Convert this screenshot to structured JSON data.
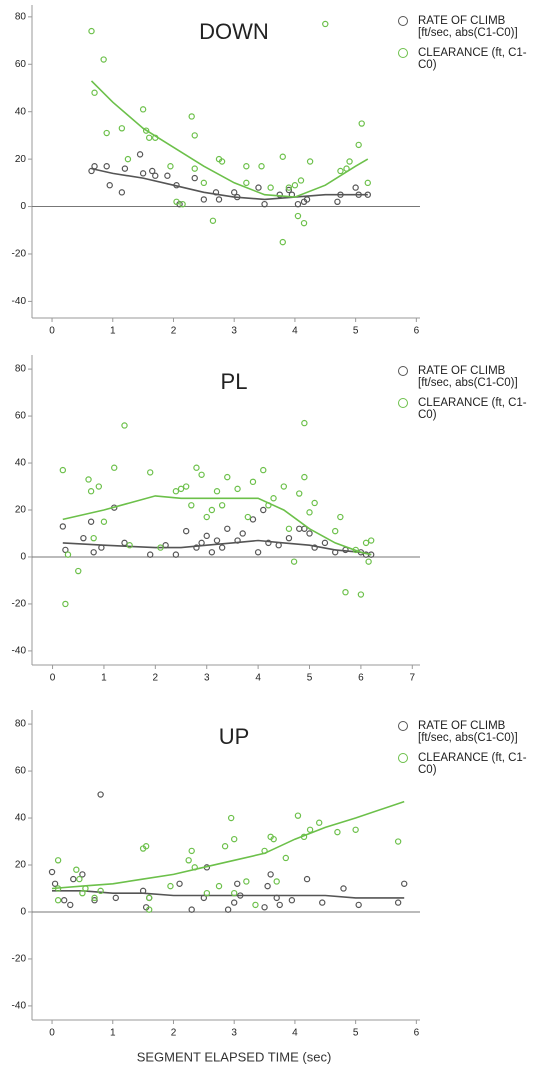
{
  "chart_data": [
    {
      "type": "scatter",
      "title": "DOWN",
      "xlim": [
        -0.33,
        6.06
      ],
      "ylim": [
        -47,
        85
      ],
      "xticks": [
        0,
        1,
        2,
        3,
        4,
        5,
        6
      ],
      "yticks": [
        -40,
        -20,
        0,
        20,
        40,
        60,
        80
      ],
      "reference_line": 0,
      "series": [
        {
          "name": "RATE OF CLIMB [ft/sec, abs(C1-C0)]",
          "color": "#555555",
          "x": [
            0.65,
            0.7,
            0.9,
            0.95,
            1.15,
            1.2,
            1.45,
            1.5,
            1.65,
            1.7,
            1.9,
            2.05,
            2.1,
            2.35,
            2.5,
            2.7,
            2.75,
            3.0,
            3.05,
            3.4,
            3.5,
            3.75,
            3.9,
            3.95,
            4.05,
            4.15,
            4.2,
            4.7,
            4.75,
            5.0,
            5.05,
            5.2
          ],
          "values": [
            15,
            17,
            17,
            9,
            6,
            16,
            22,
            14,
            15,
            13,
            13,
            9,
            1,
            12,
            3,
            6,
            3,
            6,
            4,
            8,
            1,
            5,
            7,
            5,
            1,
            2,
            3,
            2,
            5,
            8,
            5,
            5
          ],
          "fit": {
            "x": [
              0.65,
              1,
              1.5,
              2,
              2.5,
              3,
              3.5,
              4,
              4.5,
              5,
              5.2
            ],
            "values": [
              16,
              14,
              12,
              9,
              6,
              4,
              3,
              4,
              5,
              5,
              5
            ]
          }
        },
        {
          "name": "CLEARANCE (ft, C1-C0)",
          "color": "#6cc04a",
          "x": [
            0.65,
            0.7,
            0.85,
            0.9,
            1.15,
            1.25,
            1.5,
            1.55,
            1.6,
            1.7,
            1.95,
            2.05,
            2.15,
            2.3,
            2.35,
            2.35,
            2.5,
            2.65,
            2.75,
            2.8,
            3.2,
            3.2,
            3.45,
            3.6,
            3.8,
            3.8,
            3.9,
            4.0,
            4.05,
            4.1,
            4.15,
            4.25,
            4.5,
            4.75,
            4.85,
            4.9,
            5.05,
            5.1,
            5.2
          ],
          "values": [
            74,
            48,
            62,
            31,
            33,
            20,
            41,
            32,
            29,
            29,
            17,
            2,
            1,
            38,
            30,
            16,
            10,
            -6,
            20,
            19,
            10,
            17,
            17,
            8,
            21,
            -15,
            8,
            9,
            -4,
            11,
            -7,
            19,
            77,
            15,
            16,
            19,
            26,
            35,
            10
          ],
          "fit": {
            "x": [
              0.65,
              1,
              1.5,
              2,
              2.5,
              3,
              3.5,
              4,
              4.5,
              5,
              5.2
            ],
            "values": [
              53,
              44,
              33,
              25,
              17,
              10,
              5,
              4,
              9,
              17,
              20
            ]
          }
        }
      ]
    },
    {
      "type": "scatter",
      "title": "PL",
      "xlim": [
        -0.4,
        7.15
      ],
      "ylim": [
        -46,
        86
      ],
      "xticks": [
        0,
        1,
        2,
        3,
        4,
        5,
        6,
        7
      ],
      "yticks": [
        -40,
        -20,
        0,
        20,
        40,
        60,
        80
      ],
      "reference_line": 0,
      "series": [
        {
          "name": "RATE OF CLIMB [ft/sec, abs(C1-C0)]",
          "color": "#555555",
          "x": [
            0.2,
            0.25,
            0.6,
            0.75,
            0.8,
            0.95,
            1.2,
            1.4,
            1.9,
            2.2,
            2.4,
            2.6,
            2.8,
            2.9,
            3.0,
            3.1,
            3.2,
            3.3,
            3.4,
            3.6,
            3.7,
            3.9,
            4.0,
            4.1,
            4.2,
            4.4,
            4.6,
            4.8,
            4.9,
            5.0,
            5.1,
            5.3,
            5.5,
            5.7,
            6.0,
            6.1,
            6.2
          ],
          "values": [
            13,
            3,
            8,
            15,
            2,
            4,
            21,
            6,
            1,
            5,
            1,
            11,
            4,
            6,
            9,
            2,
            7,
            4,
            12,
            7,
            10,
            16,
            2,
            20,
            6,
            5,
            8,
            12,
            12,
            10,
            4,
            6,
            2,
            3,
            2,
            1,
            1
          ],
          "fit": {
            "x": [
              0.2,
              1,
              2,
              2.5,
              3,
              3.5,
              4,
              4.5,
              5,
              5.5,
              6,
              6.2
            ],
            "values": [
              6,
              5,
              4,
              4,
              5,
              6,
              7,
              6,
              5,
              3,
              2,
              1
            ]
          }
        },
        {
          "name": "CLEARANCE (ft, C1-C0)",
          "color": "#6cc04a",
          "x": [
            0.2,
            0.25,
            0.3,
            0.5,
            0.7,
            0.75,
            0.8,
            0.9,
            1.0,
            1.2,
            1.4,
            1.5,
            1.9,
            2.1,
            2.4,
            2.5,
            2.6,
            2.7,
            2.8,
            2.9,
            3.0,
            3.1,
            3.2,
            3.3,
            3.4,
            3.6,
            3.8,
            3.9,
            4.1,
            4.2,
            4.3,
            4.5,
            4.6,
            4.7,
            4.8,
            4.9,
            4.9,
            5.0,
            5.1,
            5.5,
            5.6,
            5.7,
            5.9,
            6.0,
            6.1,
            6.15,
            6.2
          ],
          "values": [
            37,
            -20,
            1,
            -6,
            33,
            28,
            8,
            30,
            15,
            38,
            56,
            5,
            36,
            4,
            28,
            29,
            30,
            22,
            38,
            35,
            17,
            20,
            28,
            22,
            34,
            29,
            17,
            32,
            37,
            22,
            25,
            30,
            12,
            -2,
            27,
            57,
            34,
            19,
            23,
            11,
            17,
            -15,
            3,
            -16,
            6,
            -2,
            7
          ],
          "fit": {
            "x": [
              0.2,
              1,
              2,
              2.5,
              3,
              3.5,
              4,
              4.5,
              5,
              5.5,
              6,
              6.2
            ],
            "values": [
              16,
              20,
              26,
              25,
              25,
              25,
              25,
              20,
              12,
              6,
              2,
              1
            ]
          }
        }
      ]
    },
    {
      "type": "scatter",
      "title": "UP",
      "xlim": [
        -0.33,
        6.06
      ],
      "ylim": [
        -46,
        86
      ],
      "xticks": [
        0,
        1,
        2,
        3,
        4,
        5,
        6
      ],
      "yticks": [
        -40,
        -20,
        0,
        20,
        40,
        60,
        80
      ],
      "reference_line": 0,
      "x_label": "SEGMENT ELAPSED TIME (sec)",
      "series": [
        {
          "name": "RATE OF CLIMB [ft/sec, abs(C1-C0)]",
          "color": "#555555",
          "x": [
            0,
            0.05,
            0.2,
            0.3,
            0.35,
            0.5,
            0.7,
            0.8,
            1.05,
            1.5,
            1.55,
            1.6,
            2.1,
            2.3,
            2.5,
            2.55,
            2.9,
            3.0,
            3.05,
            3.1,
            3.5,
            3.55,
            3.6,
            3.7,
            3.75,
            3.95,
            4.2,
            4.45,
            4.8,
            5.05,
            5.7,
            5.8
          ],
          "values": [
            17,
            12,
            5,
            3,
            14,
            16,
            5,
            50,
            6,
            9,
            2,
            6,
            12,
            1,
            6,
            19,
            1,
            4,
            12,
            7,
            2,
            11,
            16,
            6,
            3,
            5,
            14,
            4,
            10,
            3,
            4,
            12
          ],
          "fit": {
            "x": [
              0,
              0.5,
              1,
              1.5,
              2,
              2.5,
              3,
              3.5,
              4,
              4.5,
              5,
              5.8
            ],
            "values": [
              9,
              9,
              8,
              8,
              7,
              7,
              7,
              7,
              7,
              7,
              6,
              6
            ]
          }
        },
        {
          "name": "CLEARANCE (ft, C1-C0)",
          "color": "#6cc04a",
          "x": [
            0.1,
            0.1,
            0.1,
            0.4,
            0.45,
            0.5,
            0.55,
            0.7,
            0.8,
            1.5,
            1.55,
            1.6,
            1.6,
            1.95,
            2.25,
            2.3,
            2.35,
            2.55,
            2.75,
            2.85,
            2.95,
            3.0,
            3.0,
            3.2,
            3.35,
            3.5,
            3.6,
            3.65,
            3.7,
            3.85,
            4.05,
            4.15,
            4.25,
            4.4,
            4.7,
            5.0,
            5.7
          ],
          "values": [
            22,
            10,
            5,
            18,
            14,
            8,
            10,
            6,
            9,
            27,
            28,
            1,
            6,
            11,
            22,
            26,
            19,
            8,
            11,
            28,
            40,
            31,
            8,
            13,
            3,
            26,
            32,
            31,
            13,
            23,
            41,
            32,
            35,
            38,
            34,
            35,
            30
          ],
          "fit": {
            "x": [
              0,
              0.5,
              1,
              1.5,
              2,
              2.5,
              3,
              3.5,
              4,
              4.5,
              5,
              5.8
            ],
            "values": [
              10,
              11,
              12,
              14,
              16,
              19,
              22,
              25,
              31,
              36,
              40,
              47
            ]
          }
        }
      ]
    }
  ]
}
